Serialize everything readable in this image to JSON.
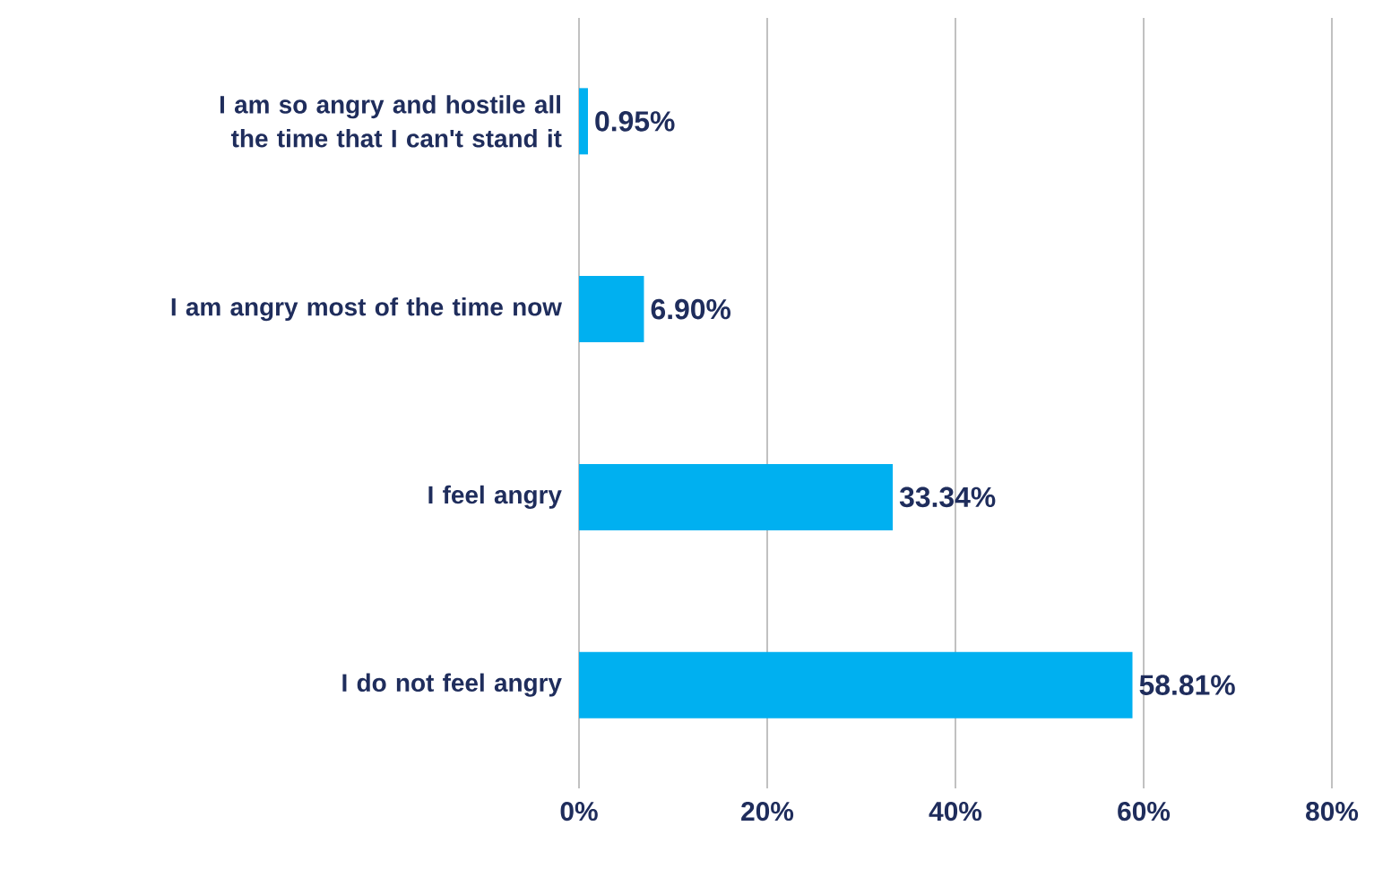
{
  "chart_data": {
    "type": "bar",
    "orientation": "horizontal",
    "categories": [
      "I am so angry and hostile all the time that I can't stand it",
      "I am angry most of the time now",
      "I feel angry",
      "I do not feel angry"
    ],
    "values": [
      0.95,
      6.9,
      33.34,
      58.81
    ],
    "value_labels": [
      "0.95%",
      "6.90%",
      "33.34%",
      "58.81%"
    ],
    "color": "#00b0f0",
    "xlim": [
      0,
      80
    ],
    "xticks": [
      {
        "value": 0,
        "label": "0%"
      },
      {
        "value": 20,
        "label": "20%"
      },
      {
        "value": 40,
        "label": "40%"
      },
      {
        "value": 60,
        "label": "60%"
      },
      {
        "value": 80,
        "label": "80%"
      }
    ],
    "grid": "x"
  }
}
